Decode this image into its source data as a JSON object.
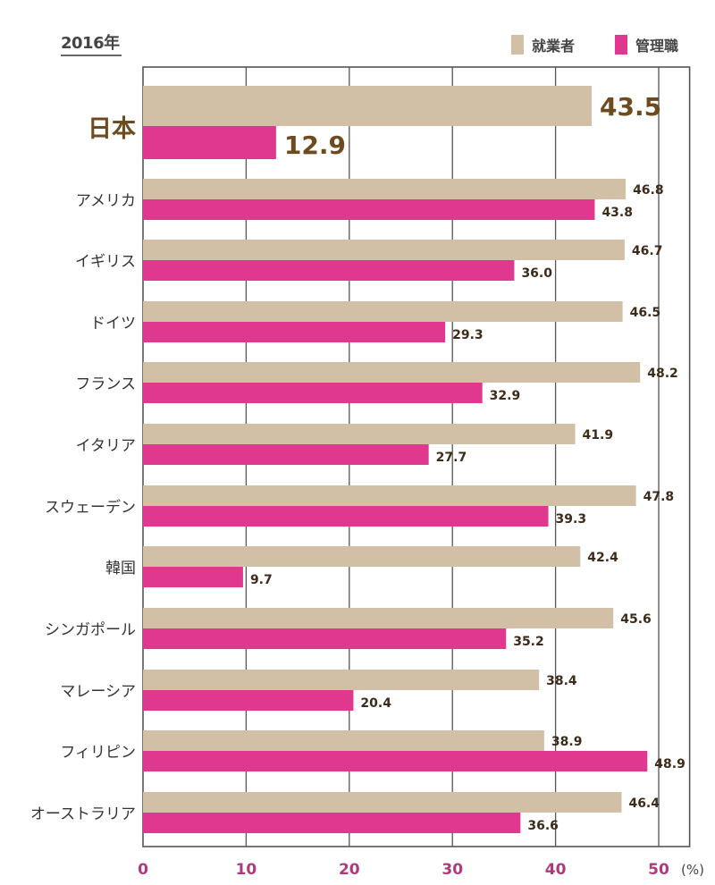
{
  "chart_data": {
    "type": "bar",
    "orientation": "horizontal",
    "title": "2016年",
    "categories": [
      "日本",
      "アメリカ",
      "イギリス",
      "ドイツ",
      "フランス",
      "イタリア",
      "スウェーデン",
      "韓国",
      "シンガポール",
      "マレーシア",
      "フィリピン",
      "オーストラリア"
    ],
    "series": [
      {
        "name": "就業者",
        "color": "#d1c0a5",
        "values": [
          43.5,
          46.8,
          46.7,
          46.5,
          48.2,
          41.9,
          47.8,
          42.4,
          45.6,
          38.4,
          38.9,
          46.4
        ]
      },
      {
        "name": "管理職",
        "color": "#e0388f",
        "values": [
          12.9,
          43.8,
          36.0,
          29.3,
          32.9,
          27.7,
          39.3,
          9.7,
          35.2,
          20.4,
          48.9,
          36.6
        ]
      }
    ],
    "xlim": [
      0,
      53
    ],
    "xticks": [
      "0",
      "10",
      "20",
      "30",
      "40",
      "50"
    ],
    "xunit": "(%)",
    "grid": true,
    "legend": "top-right",
    "highlight_category": "日本",
    "tick_color": "#b0397e",
    "highlight_color": "#6e4a1f"
  }
}
